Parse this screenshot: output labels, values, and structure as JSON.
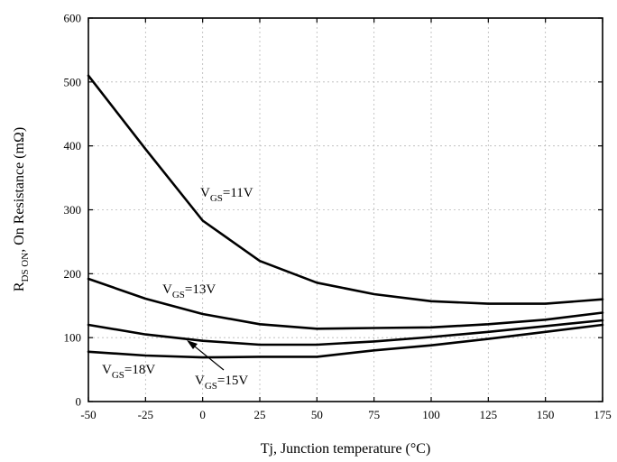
{
  "chart_data": {
    "type": "line",
    "xlabel": "Tj, Junction temperature (°C)",
    "ylabel": {
      "main": "R",
      "sub": "DS ON",
      "rest": ", On Resistance (mΩ)"
    },
    "xlim": [
      -50,
      175
    ],
    "ylim": [
      0,
      600
    ],
    "xticks": [
      -50,
      -25,
      0,
      25,
      50,
      75,
      100,
      125,
      150,
      175
    ],
    "yticks": [
      0,
      100,
      200,
      300,
      400,
      500,
      600
    ],
    "grid": true,
    "series": [
      {
        "name": "VGS=11V",
        "label": {
          "v": "V",
          "sub": "GS",
          "rest": "=11V"
        },
        "x": [
          -50,
          -25,
          0,
          25,
          50,
          75,
          100,
          125,
          150,
          175
        ],
        "y": [
          510,
          395,
          283,
          220,
          186,
          168,
          157,
          153,
          153,
          160
        ]
      },
      {
        "name": "VGS=13V",
        "label": {
          "v": "V",
          "sub": "GS",
          "rest": "=13V"
        },
        "x": [
          -50,
          -25,
          0,
          25,
          50,
          75,
          100,
          125,
          150,
          175
        ],
        "y": [
          192,
          161,
          137,
          121,
          114,
          115,
          116,
          121,
          128,
          139
        ]
      },
      {
        "name": "VGS=15V",
        "label": {
          "v": "V",
          "sub": "GS",
          "rest": "=15V"
        },
        "x": [
          -50,
          -25,
          0,
          25,
          50,
          75,
          100,
          125,
          150,
          175
        ],
        "y": [
          120,
          105,
          95,
          89,
          89,
          94,
          101,
          109,
          118,
          127
        ]
      },
      {
        "name": "VGS=18V",
        "label": {
          "v": "V",
          "sub": "GS",
          "rest": "=18V"
        },
        "x": [
          -50,
          -25,
          0,
          25,
          50,
          75,
          100,
          125,
          150,
          175
        ],
        "y": [
          78,
          72,
          69,
          70,
          70,
          80,
          88,
          98,
          109,
          120
        ]
      }
    ]
  }
}
